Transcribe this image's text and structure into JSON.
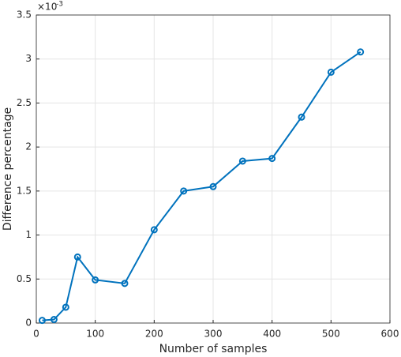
{
  "chart_data": {
    "type": "line",
    "x_label": "Number of samples",
    "y_label": "Difference percentage",
    "y_multiplier": {
      "base": "×10",
      "exponent": "-3"
    },
    "x": [
      10,
      30,
      50,
      70,
      100,
      150,
      200,
      250,
      300,
      350,
      400,
      450,
      500,
      550
    ],
    "series": [
      {
        "color": "#0072bd",
        "values": [
          0.03,
          0.04,
          0.18,
          0.75,
          0.49,
          0.45,
          1.06,
          1.5,
          1.55,
          1.84,
          1.87,
          2.34,
          2.85,
          3.08
        ]
      }
    ],
    "xlim": [
      0,
      600
    ],
    "xticks": [
      0,
      100,
      200,
      300,
      400,
      500,
      600
    ],
    "ylim": [
      0,
      3.5
    ],
    "yticks": [
      0,
      0.5,
      1,
      1.5,
      2,
      2.5,
      3,
      3.5
    ],
    "grid": true,
    "markers": "circle"
  }
}
